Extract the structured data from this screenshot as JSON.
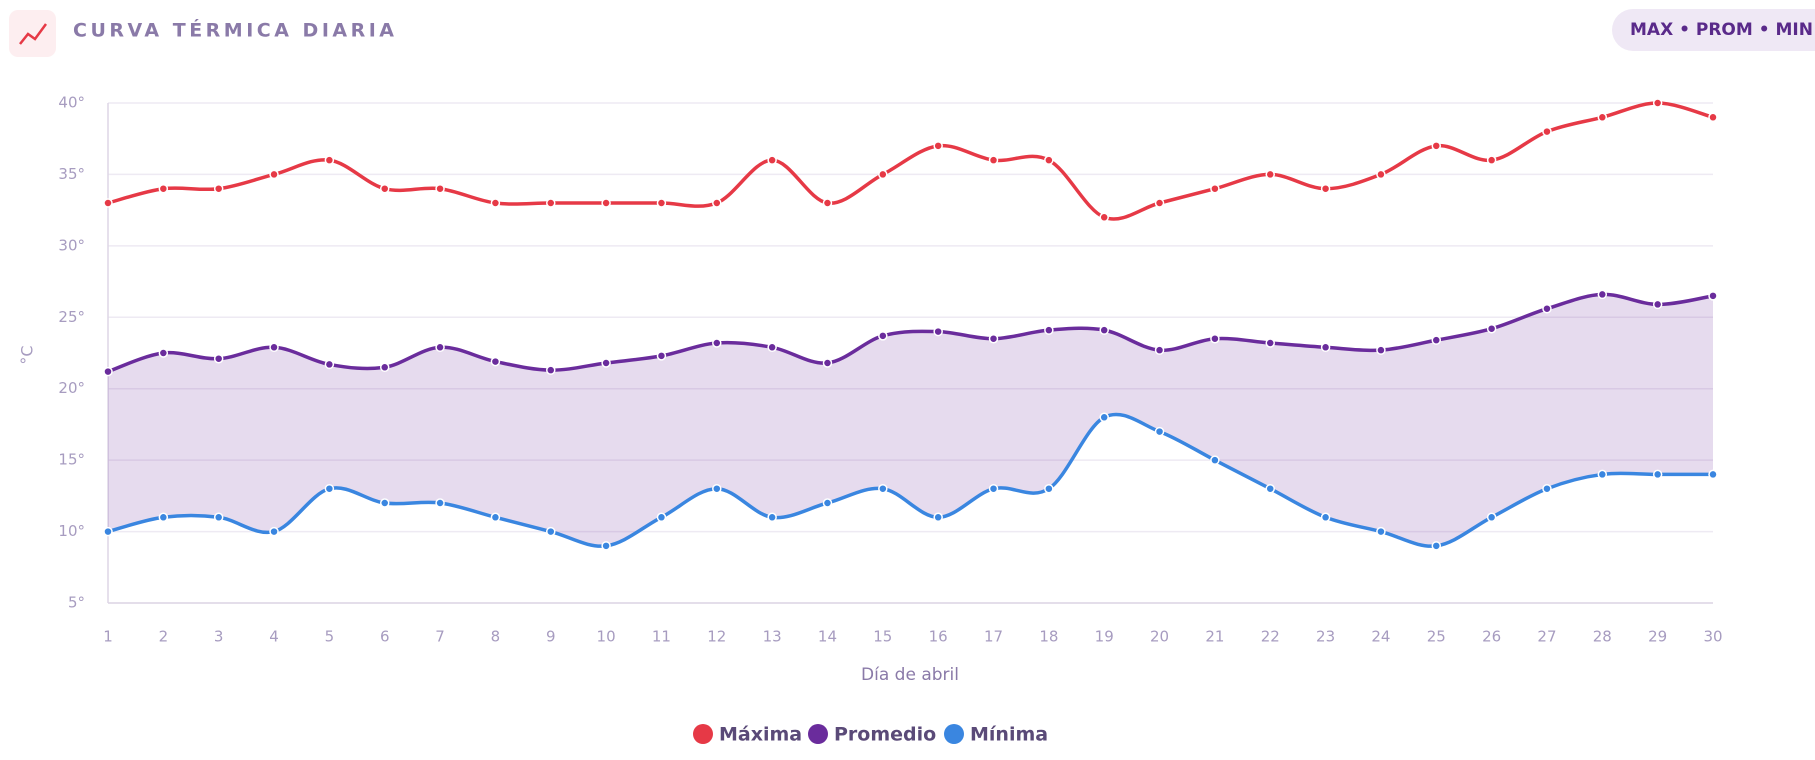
{
  "header": {
    "title": "CURVA TÉRMICA DIARIA",
    "badge": "MAX • PROM • MIN"
  },
  "chart_data": {
    "type": "line",
    "ylabel": "°C",
    "xlabel": "Día de abril",
    "categories": [
      "1",
      "2",
      "3",
      "4",
      "5",
      "6",
      "7",
      "8",
      "9",
      "10",
      "11",
      "12",
      "13",
      "14",
      "15",
      "16",
      "17",
      "18",
      "19",
      "20",
      "21",
      "22",
      "23",
      "24",
      "25",
      "26",
      "27",
      "28",
      "29",
      "30"
    ],
    "series": [
      {
        "name": "Máxima",
        "color": "#e63946",
        "values": [
          33,
          34,
          34,
          35,
          36,
          34,
          34,
          33,
          33,
          33,
          33,
          33,
          36,
          33,
          35,
          37,
          36,
          36,
          32,
          33,
          34,
          35,
          34,
          35,
          37,
          36,
          38,
          39,
          40,
          39
        ]
      },
      {
        "name": "Promedio",
        "color": "#6a2c9c",
        "values": [
          21.2,
          22.5,
          22.1,
          22.9,
          21.7,
          21.5,
          22.9,
          21.9,
          21.3,
          21.8,
          22.3,
          23.2,
          22.9,
          21.8,
          23.7,
          24.0,
          23.5,
          24.1,
          24.1,
          22.7,
          23.5,
          23.2,
          22.9,
          22.7,
          23.4,
          24.2,
          25.6,
          26.6,
          25.9,
          26.5
        ]
      },
      {
        "name": "Mínima",
        "color": "#3a86e0",
        "values": [
          10,
          11,
          11,
          10,
          13,
          12,
          12,
          11,
          10,
          9,
          11,
          13,
          11,
          12,
          13,
          11,
          13,
          13,
          18,
          17,
          15,
          13,
          11,
          10,
          9,
          11,
          13,
          14,
          14,
          14
        ]
      }
    ],
    "ylim": [
      5,
      40
    ],
    "yticks": [
      {
        "value": 5,
        "label": "5°"
      },
      {
        "value": 10,
        "label": "10°"
      },
      {
        "value": 15,
        "label": "15°"
      },
      {
        "value": 20,
        "label": "20°"
      },
      {
        "value": 25,
        "label": "25°"
      },
      {
        "value": 30,
        "label": "30°"
      },
      {
        "value": 35,
        "label": "35°"
      },
      {
        "value": 40,
        "label": "40°"
      }
    ],
    "grid": true
  }
}
